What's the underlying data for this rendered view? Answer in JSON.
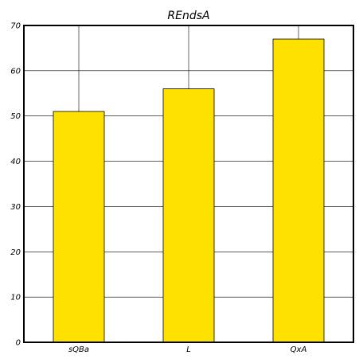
{
  "chart_data": {
    "type": "bar",
    "title": "REndsA",
    "xlabel": "",
    "ylabel": "",
    "categories": [
      "sQBa",
      "L",
      "QxA"
    ],
    "values": [
      51,
      56,
      67
    ],
    "ylim": [
      0,
      70
    ],
    "yticks": [
      0,
      10,
      20,
      30,
      40,
      50,
      60,
      70
    ],
    "grid": true,
    "legend": "none",
    "colors": {
      "bar_fill": "#FFE100",
      "bar_edge": "#000000",
      "grid": "#000000",
      "axes": "#000000",
      "background": "#ffffff"
    }
  }
}
